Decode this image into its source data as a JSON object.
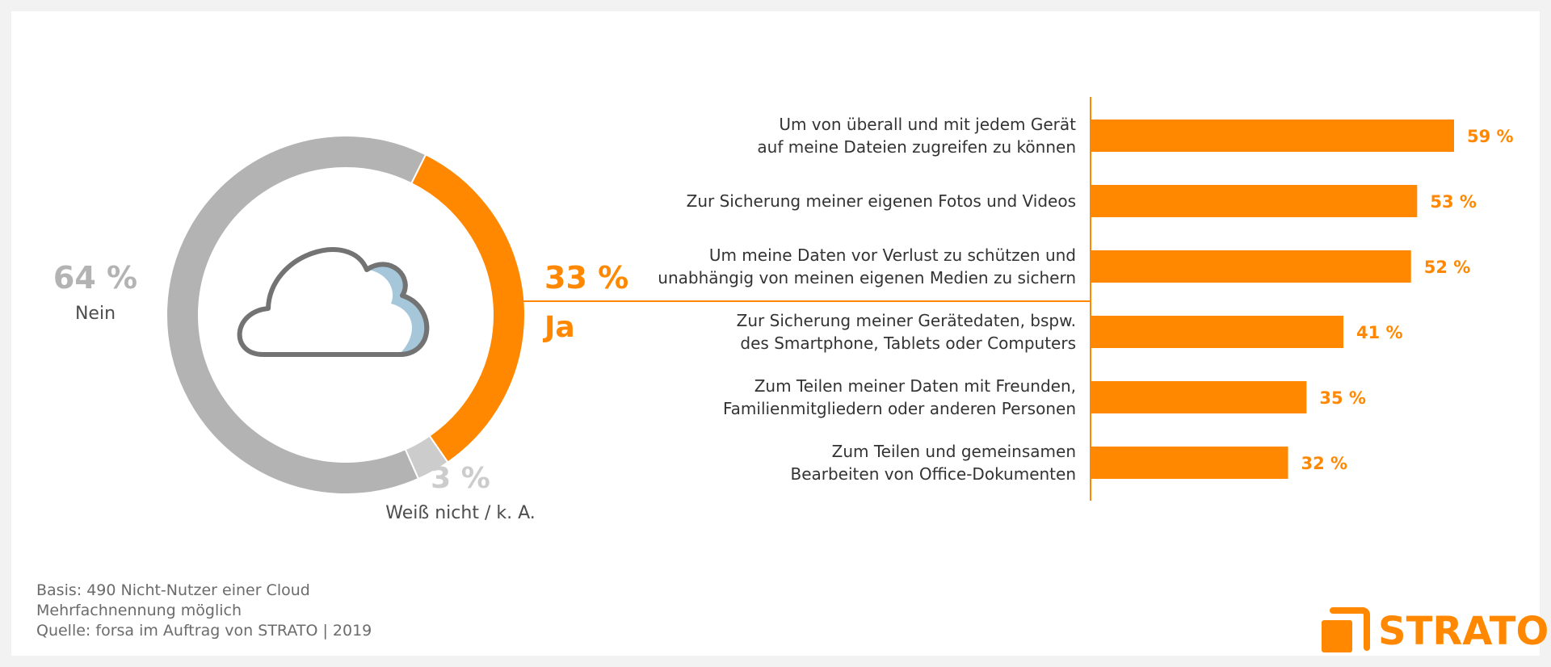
{
  "chart_data": [
    {
      "type": "pie",
      "title": "",
      "slices": [
        {
          "label": "Ja",
          "value_label": "33 %",
          "value": 33,
          "color": "#ff8800"
        },
        {
          "label": "Weiß nicht / k. A.",
          "value_label": "3 %",
          "value": 3,
          "color": "#cccccc"
        },
        {
          "label": "Nein",
          "value_label": "64 %",
          "value": 64,
          "color": "#b3b3b3"
        }
      ],
      "center_icon": "cloud-icon"
    },
    {
      "type": "bar",
      "orientation": "horizontal",
      "title": "",
      "xlabel": "",
      "ylabel": "",
      "categories": [
        [
          "Um von überall und mit jedem Gerät",
          "auf meine Dateien zugreifen zu können"
        ],
        [
          "Zur Sicherung meiner eigenen Fotos und Videos"
        ],
        [
          "Um meine Daten vor Verlust zu schützen und",
          "unabhängig von meinen eigenen Medien zu sichern"
        ],
        [
          "Zur Sicherung meiner Gerätedaten, bspw.",
          "des Smartphone, Tablets oder Computers"
        ],
        [
          "Zum Teilen meiner Daten mit Freunden,",
          "Familienmitgliedern oder anderen Personen"
        ],
        [
          "Zum Teilen und gemeinsamen",
          "Bearbeiten von Office-Dokumenten"
        ]
      ],
      "values": [
        59,
        53,
        52,
        41,
        35,
        32
      ],
      "value_labels": [
        "59 %",
        "53 %",
        "52 %",
        "41 %",
        "35 %",
        "32 %"
      ],
      "xlim": [
        0,
        100
      ],
      "color": "#ff8800"
    }
  ],
  "footer": {
    "lines": [
      "Basis: 490 Nicht-Nutzer einer Cloud",
      "Mehrfachnennung möglich",
      "Quelle: forsa im Auftrag von STRATO | 2019"
    ]
  },
  "brand": {
    "name": "STRATO",
    "color": "#ff8800"
  }
}
